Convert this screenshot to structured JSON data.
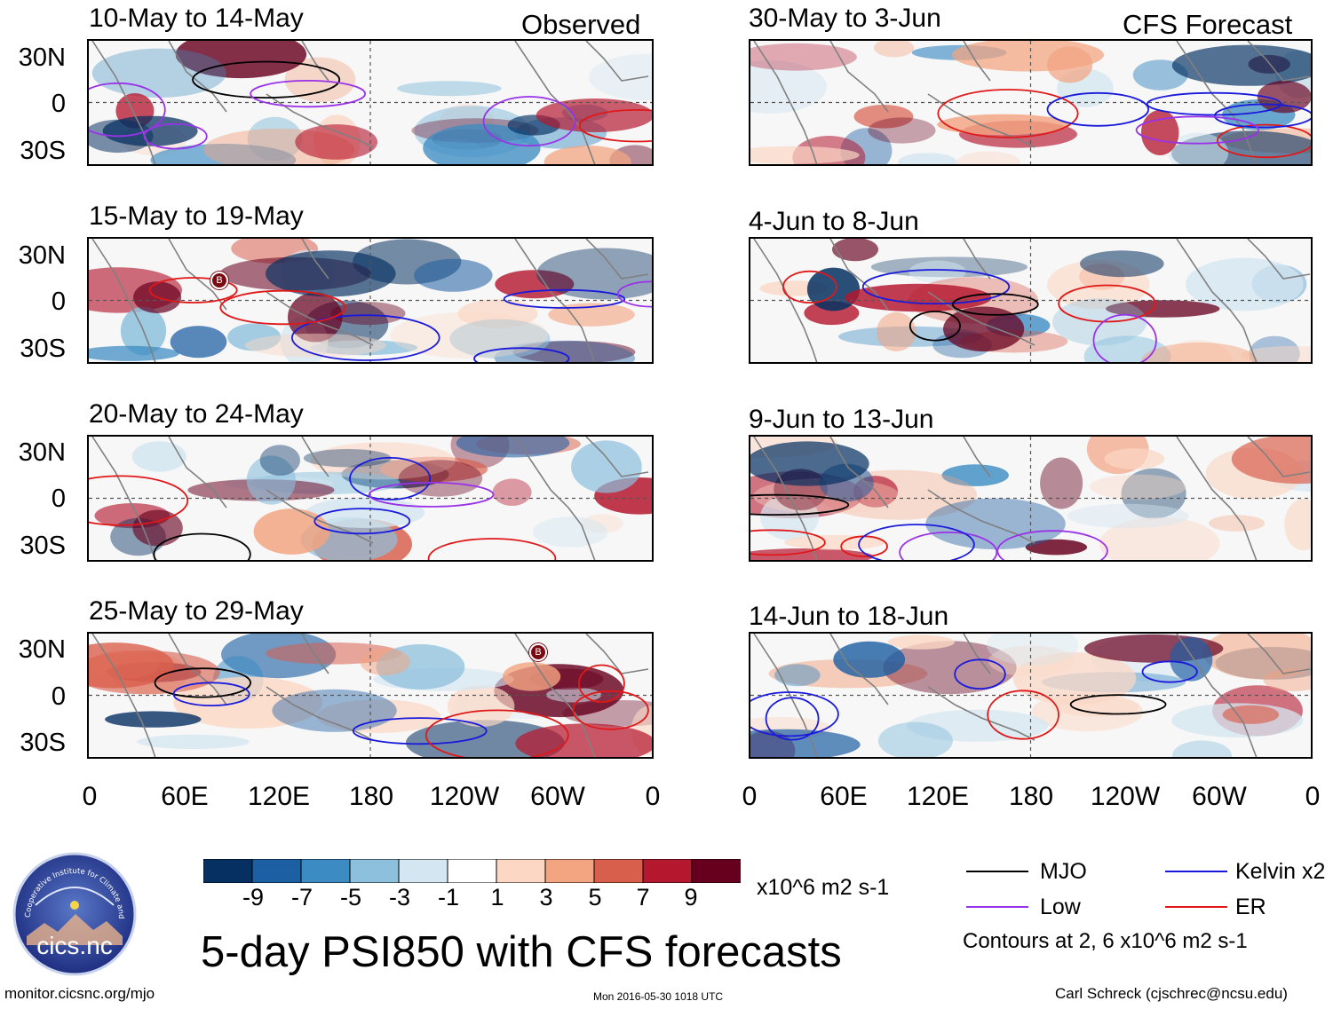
{
  "header": {
    "left_tag": "Observed",
    "right_tag": "CFS Forecast"
  },
  "panels": {
    "left": [
      {
        "title": "10-May to 14-May"
      },
      {
        "title": "15-May to 19-May"
      },
      {
        "title": "20-May to 24-May"
      },
      {
        "title": "25-May to 29-May"
      }
    ],
    "right": [
      {
        "title": "30-May to 3-Jun"
      },
      {
        "title": "4-Jun to 8-Jun"
      },
      {
        "title": "9-Jun to 13-Jun"
      },
      {
        "title": "14-Jun to 18-Jun"
      }
    ]
  },
  "axes": {
    "y_labels": [
      "30N",
      "0",
      "30S"
    ],
    "x_labels": [
      "0",
      "60E",
      "120E",
      "180",
      "120W",
      "60W",
      "0"
    ]
  },
  "colorbar": {
    "labels": [
      "-9",
      "-7",
      "-5",
      "-3",
      "-1",
      "1",
      "3",
      "5",
      "7",
      "9"
    ],
    "colors": [
      "#053061",
      "#1d5fa3",
      "#3c8cc3",
      "#8cc0dd",
      "#d3e6f1",
      "#ffffff",
      "#fbd7c4",
      "#f3a481",
      "#d95f4d",
      "#b5172f",
      "#67001f"
    ],
    "units": "x10^6 m2 s-1"
  },
  "legend": {
    "items": [
      {
        "label": "MJO",
        "color": "#000000"
      },
      {
        "label": "Kelvin x2",
        "color": "#1a1adc"
      },
      {
        "label": "Low",
        "color": "#9a32e8"
      },
      {
        "label": "ER",
        "color": "#e01818"
      }
    ],
    "note": "Contours at 2, 6 x10^6 m2 s-1"
  },
  "logo_text": "cics.nc",
  "logo_ring_text": "Cooperative Institute for Climate and Satellites",
  "main_title": "5-day PSI850 with CFS forecasts",
  "footer": {
    "url": "monitor.cicsnc.org/mjo",
    "timestamp": "Mon 2016-05-30 1018 UTC",
    "author": "Carl Schreck (cjschrec@ncsu.edu)"
  },
  "markers": {
    "storm": "B"
  }
}
